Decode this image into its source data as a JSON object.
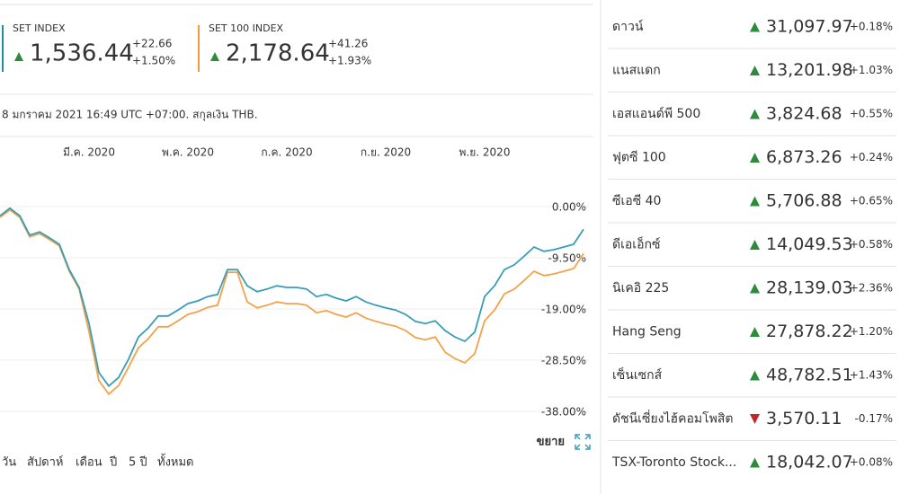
{
  "indices": [
    {
      "name": "SET INDEX",
      "value": "1,536.44",
      "change": "+22.66",
      "change_pct": "+1.50%",
      "direction": "up",
      "color": "#1b8fa6"
    },
    {
      "name": "SET 100 INDEX",
      "value": "2,178.64",
      "change": "+41.26",
      "change_pct": "+1.93%",
      "direction": "up",
      "color": "#f29a3c"
    }
  ],
  "note": "8 มกราคม 2021 16:49 UTC +07:00. สกุลเงิน THB.",
  "chart_data": {
    "type": "line",
    "categories": [
      null,
      null,
      null,
      null,
      null,
      null,
      null,
      null,
      null,
      "มี.ค. 2020",
      null,
      null,
      null,
      null,
      null,
      null,
      null,
      null,
      null,
      "พ.ค. 2020",
      null,
      null,
      null,
      null,
      null,
      null,
      null,
      null,
      null,
      "ก.ค. 2020",
      null,
      null,
      null,
      null,
      null,
      null,
      null,
      null,
      null,
      "ก.ย. 2020",
      null,
      null,
      null,
      null,
      null,
      null,
      null,
      null,
      null,
      "พ.ย. 2020",
      null,
      null,
      null,
      null,
      null,
      null,
      null,
      null,
      null,
      null
    ],
    "series": [
      {
        "name": "SET INDEX",
        "color": "#3a9db8",
        "values": [
          -1.7,
          -0.3,
          -1.7,
          -5.3,
          -4.7,
          -5.8,
          -7.0,
          -11.7,
          -15.0,
          -21.7,
          -30.8,
          -33.3,
          -31.7,
          -28.3,
          -24.2,
          -22.5,
          -20.3,
          -20.3,
          -19.2,
          -18.0,
          -17.5,
          -16.7,
          -16.3,
          -11.7,
          -11.7,
          -14.7,
          -15.8,
          -15.3,
          -14.7,
          -15.0,
          -15.0,
          -15.3,
          -16.7,
          -16.3,
          -17.0,
          -17.5,
          -16.7,
          -17.7,
          -18.3,
          -18.8,
          -19.2,
          -20.0,
          -21.3,
          -21.7,
          -21.2,
          -23.0,
          -24.2,
          -25.0,
          -23.3,
          -16.7,
          -14.7,
          -11.7,
          -10.8,
          -9.2,
          -7.5,
          -8.3,
          -8.0,
          -7.5,
          -7.0,
          -4.2
        ]
      },
      {
        "name": "SET 100 INDEX",
        "color": "#f4a24a",
        "values": [
          -2.0,
          -0.6,
          -2.0,
          -5.6,
          -5.0,
          -6.1,
          -7.3,
          -12.0,
          -15.3,
          -23.2,
          -32.3,
          -34.8,
          -33.2,
          -29.8,
          -26.2,
          -24.5,
          -22.3,
          -22.3,
          -21.2,
          -20.0,
          -19.5,
          -18.7,
          -18.3,
          -12.2,
          -12.2,
          -17.7,
          -18.8,
          -18.3,
          -17.7,
          -18.0,
          -18.0,
          -18.3,
          -19.7,
          -19.3,
          -20.0,
          -20.5,
          -19.7,
          -20.7,
          -21.3,
          -21.8,
          -22.2,
          -23.0,
          -24.3,
          -24.7,
          -24.2,
          -27.0,
          -28.2,
          -29.0,
          -27.3,
          -21.2,
          -19.2,
          -16.2,
          -15.3,
          -13.7,
          -12.0,
          -12.8,
          -12.5,
          -12.0,
          -11.5,
          -8.7
        ]
      }
    ],
    "ylim": [
      -40,
      5
    ],
    "yticks": [
      {
        "value": 0,
        "label": "0.00%"
      },
      {
        "value": -9.5,
        "label": "-9.50%"
      },
      {
        "value": -19,
        "label": "-19.00%"
      },
      {
        "value": -28.5,
        "label": "-28.50%"
      },
      {
        "value": -38,
        "label": "-38.00%"
      }
    ],
    "grid": true
  },
  "expand_label": "ขยาย",
  "ranges": [
    "วัน",
    "สัปดาห์",
    "เดือน",
    "ปี",
    "5 ปี",
    "ทั้งหมด"
  ],
  "markets": [
    {
      "name": "ดาวน์",
      "value": "31,097.97",
      "change": "+0.18%",
      "direction": "up"
    },
    {
      "name": "แนสแดก",
      "value": "13,201.98",
      "change": "+1.03%",
      "direction": "up"
    },
    {
      "name": "เอสแอนด์พี 500",
      "value": "3,824.68",
      "change": "+0.55%",
      "direction": "up"
    },
    {
      "name": "ฟุตซี 100",
      "value": "6,873.26",
      "change": "+0.24%",
      "direction": "up"
    },
    {
      "name": "ซีเอซี 40",
      "value": "5,706.88",
      "change": "+0.65%",
      "direction": "up"
    },
    {
      "name": "ดีเอเอ็กซ์",
      "value": "14,049.53",
      "change": "+0.58%",
      "direction": "up"
    },
    {
      "name": "นิเคอิ 225",
      "value": "28,139.03",
      "change": "+2.36%",
      "direction": "up"
    },
    {
      "name": "Hang Seng",
      "value": "27,878.22",
      "change": "+1.20%",
      "direction": "up"
    },
    {
      "name": "เซ็นเซกส์",
      "value": "48,782.51",
      "change": "+1.43%",
      "direction": "up"
    },
    {
      "name": "ดัชนีเซี่ยงไฮ้คอมโพสิต",
      "value": "3,570.11",
      "change": "-0.17%",
      "direction": "down"
    },
    {
      "name": "TSX-Toronto Stock...",
      "value": "18,042.07",
      "change": "+0.08%",
      "direction": "up"
    }
  ]
}
